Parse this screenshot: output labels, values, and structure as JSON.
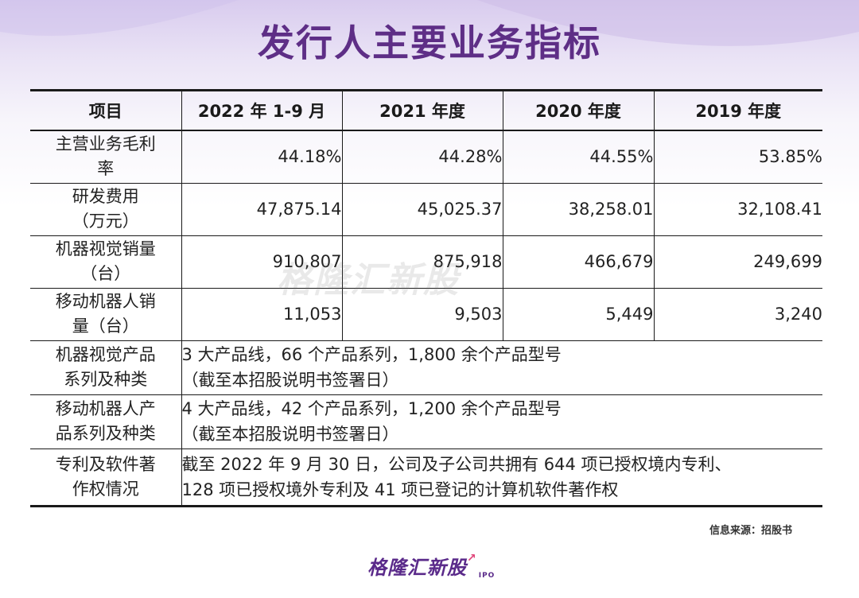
{
  "title": "发行人主要业务指标",
  "table": {
    "headers": [
      "项目",
      "2022 年 1-9 月",
      "2021 年度",
      "2020 年度",
      "2019 年度"
    ],
    "rows": [
      {
        "label": [
          "主营业务毛利",
          "率"
        ],
        "values": [
          "44.18%",
          "44.28%",
          "44.55%",
          "53.85%"
        ]
      },
      {
        "label": [
          "研发费用",
          "（万元）"
        ],
        "values": [
          "47,875.14",
          "45,025.37",
          "38,258.01",
          "32,108.41"
        ]
      },
      {
        "label": [
          "机器视觉销量",
          "（台）"
        ],
        "values": [
          "910,807",
          "875,918",
          "466,679",
          "249,699"
        ]
      },
      {
        "label": [
          "移动机器人销",
          "量（台）"
        ],
        "values": [
          "11,053",
          "9,503",
          "5,449",
          "3,240"
        ]
      }
    ],
    "desc_rows": [
      {
        "label": [
          "机器视觉产品",
          "系列及种类"
        ],
        "lines": [
          "3 大产品线，66 个产品系列，1,800 余个产品型号",
          "（截至本招股说明书签署日）"
        ]
      },
      {
        "label": [
          "移动机器人产",
          "品系列及种类"
        ],
        "lines": [
          "4 大产品线，42 个产品系列，1,200 余个产品型号",
          "（截至本招股说明书签署日）"
        ]
      },
      {
        "label": [
          "专利及软件著",
          "作权情况"
        ],
        "lines": [
          "截至 2022 年 9 月 30 日，公司及子公司共拥有 644 项已授权境内专利、",
          "128 项已授权境外专利及 41 项已登记的计算机软件著作权"
        ]
      }
    ]
  },
  "watermark": "格隆汇新股",
  "source": "信息来源：招股书",
  "brand": {
    "name": "格隆汇新股",
    "suffix": "IPO"
  },
  "colors": {
    "title": "#5e2e86",
    "brand": "#5a2a8a",
    "background_top": "#d8cbee"
  }
}
